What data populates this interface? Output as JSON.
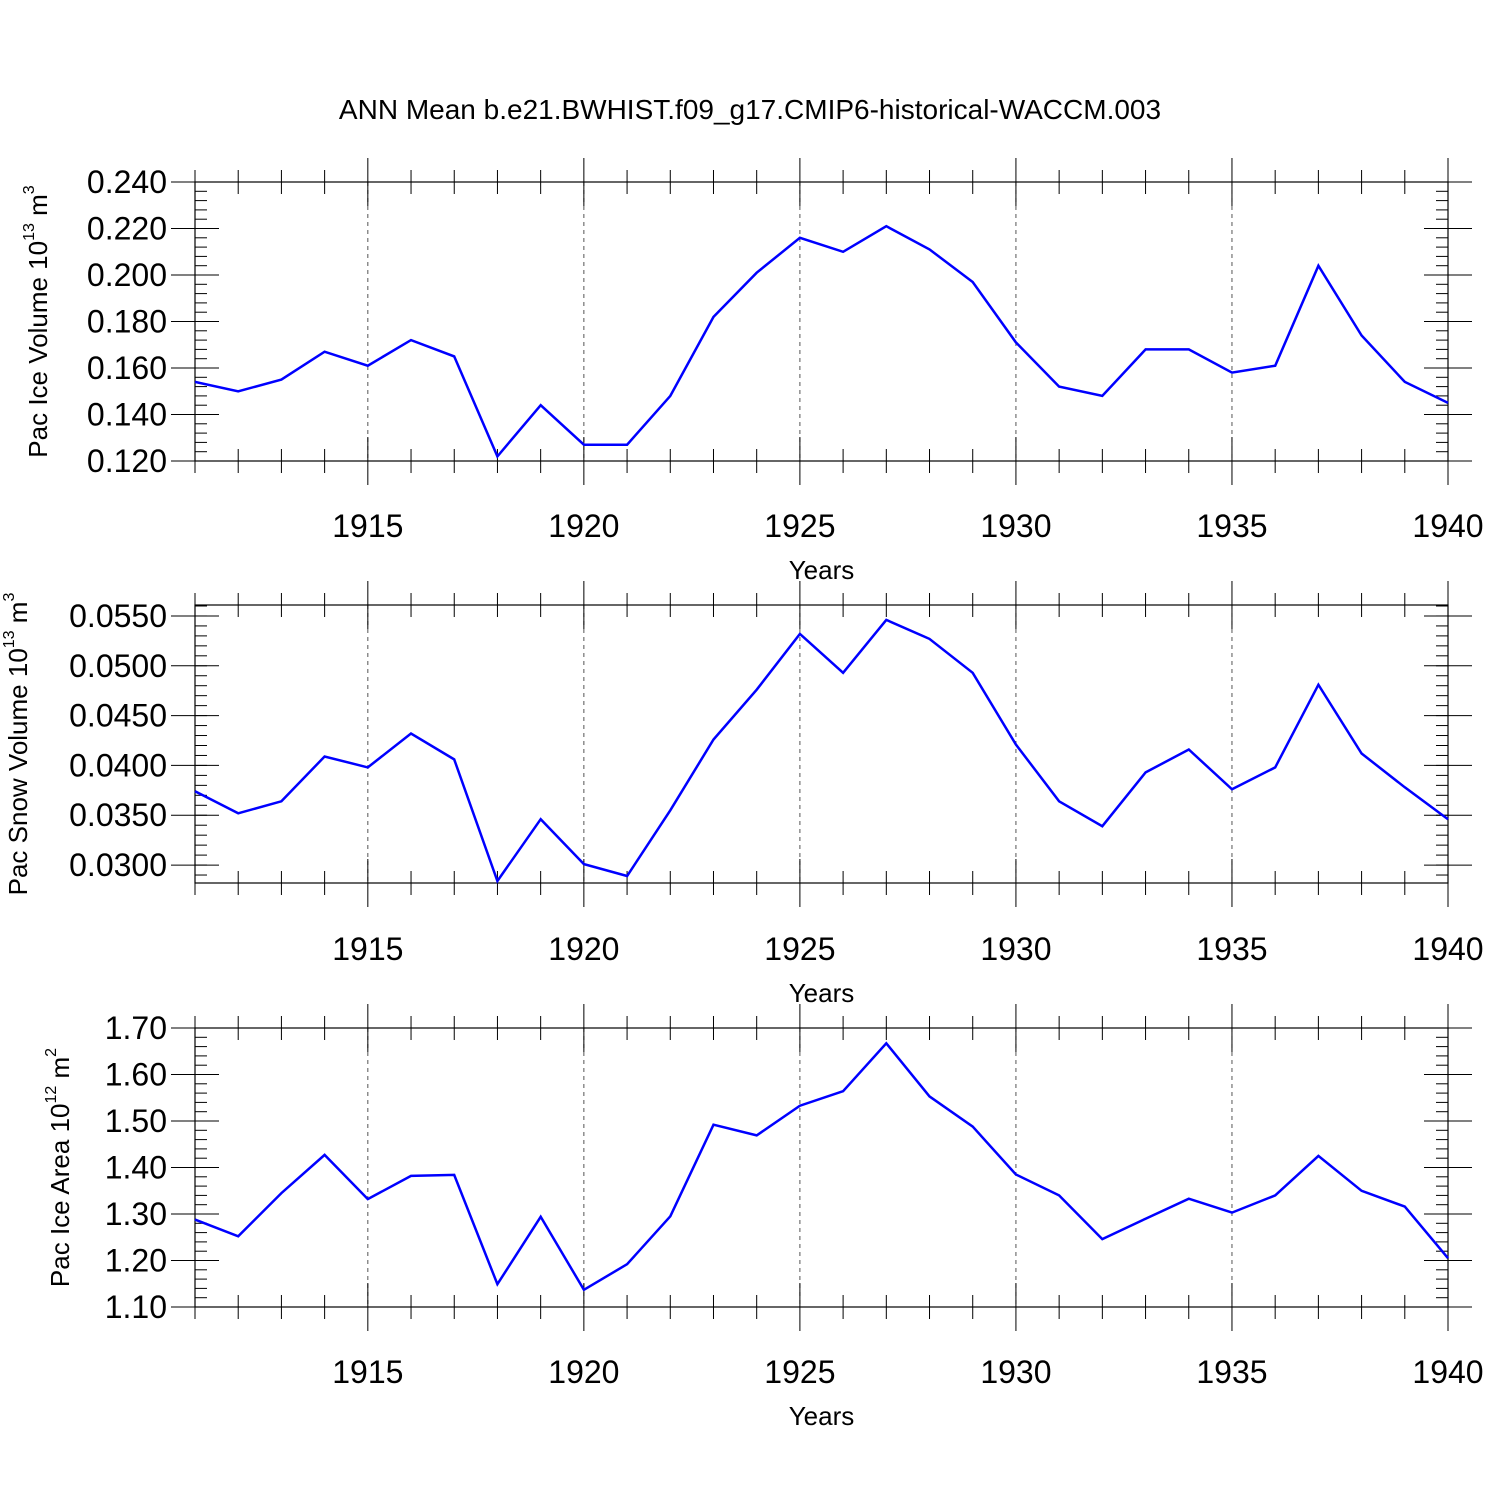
{
  "title": "ANN Mean b.e21.BWHIST.f09_g17.CMIP6-historical-WACCM.003",
  "colors": {
    "line": "#0000ff",
    "axis": "#000000",
    "grid": "#555555"
  },
  "chart_data": [
    {
      "type": "line",
      "title": "ANN Mean b.e21.BWHIST.f09_g17.CMIP6-historical-WACCM.003",
      "xlabel": "Years",
      "ylabel": {
        "base": "Pac Ice Volume 10",
        "exp": "13",
        "unit": " m",
        "unit_exp": "3"
      },
      "xlim": [
        1911,
        1940
      ],
      "ylim": [
        0.12,
        0.24
      ],
      "xticks": [
        1915,
        1920,
        1925,
        1930,
        1935,
        1940
      ],
      "yticks": [
        0.12,
        0.14,
        0.16,
        0.18,
        0.2,
        0.22,
        0.24
      ],
      "ytick_labels": [
        "0.120",
        "0.140",
        "0.160",
        "0.180",
        "0.200",
        "0.220",
        "0.240"
      ],
      "ytick_minor_step": 0.004,
      "grid": "vertical dashed at major x ticks",
      "series": [
        {
          "name": "Pac Ice Volume",
          "x": [
            1911,
            1912,
            1913,
            1914,
            1915,
            1916,
            1917,
            1918,
            1919,
            1920,
            1921,
            1922,
            1923,
            1924,
            1925,
            1926,
            1927,
            1928,
            1929,
            1930,
            1931,
            1932,
            1933,
            1934,
            1935,
            1936,
            1937,
            1938,
            1939,
            1940
          ],
          "values": [
            0.154,
            0.15,
            0.155,
            0.167,
            0.161,
            0.172,
            0.165,
            0.122,
            0.144,
            0.127,
            0.127,
            0.148,
            0.182,
            0.201,
            0.216,
            0.21,
            0.221,
            0.211,
            0.197,
            0.171,
            0.152,
            0.148,
            0.168,
            0.168,
            0.158,
            0.161,
            0.204,
            0.174,
            0.154,
            0.145
          ]
        }
      ]
    },
    {
      "type": "line",
      "xlabel": "Years",
      "ylabel": {
        "base": "Pac Snow Volume 10",
        "exp": "13",
        "unit": " m",
        "unit_exp": "3"
      },
      "xlim": [
        1911,
        1940
      ],
      "ylim": [
        0.0282,
        0.0561
      ],
      "xticks": [
        1915,
        1920,
        1925,
        1930,
        1935,
        1940
      ],
      "yticks": [
        0.03,
        0.035,
        0.04,
        0.045,
        0.05,
        0.055
      ],
      "ytick_labels": [
        "0.0300",
        "0.0350",
        "0.0400",
        "0.0450",
        "0.0500",
        "0.0550"
      ],
      "ytick_minor_step": 0.001,
      "grid": "vertical dashed at major x ticks",
      "series": [
        {
          "name": "Pac Snow Volume",
          "x": [
            1911,
            1912,
            1913,
            1914,
            1915,
            1916,
            1917,
            1918,
            1919,
            1920,
            1921,
            1922,
            1923,
            1924,
            1925,
            1926,
            1927,
            1928,
            1929,
            1930,
            1931,
            1932,
            1933,
            1934,
            1935,
            1936,
            1937,
            1938,
            1939,
            1940
          ],
          "values": [
            0.0374,
            0.0352,
            0.0364,
            0.0409,
            0.0398,
            0.0432,
            0.0406,
            0.0284,
            0.0346,
            0.0301,
            0.0289,
            0.0355,
            0.0426,
            0.0476,
            0.0532,
            0.0493,
            0.0546,
            0.0527,
            0.0493,
            0.0421,
            0.0364,
            0.0339,
            0.0393,
            0.0416,
            0.0376,
            0.0398,
            0.0481,
            0.0412,
            0.0378,
            0.0346
          ]
        }
      ]
    },
    {
      "type": "line",
      "xlabel": "Years",
      "ylabel": {
        "base": "Pac Ice Area 10",
        "exp": "12",
        "unit": " m",
        "unit_exp": "2"
      },
      "xlim": [
        1911,
        1940
      ],
      "ylim": [
        1.1,
        1.7
      ],
      "xticks": [
        1915,
        1920,
        1925,
        1930,
        1935,
        1940
      ],
      "yticks": [
        1.1,
        1.2,
        1.3,
        1.4,
        1.5,
        1.6,
        1.7
      ],
      "ytick_labels": [
        "1.10",
        "1.20",
        "1.30",
        "1.40",
        "1.50",
        "1.60",
        "1.70"
      ],
      "ytick_minor_step": 0.02,
      "grid": "vertical dashed at major x ticks",
      "series": [
        {
          "name": "Pac Ice Area",
          "x": [
            1911,
            1912,
            1913,
            1914,
            1915,
            1916,
            1917,
            1918,
            1919,
            1920,
            1921,
            1922,
            1923,
            1924,
            1925,
            1926,
            1927,
            1928,
            1929,
            1930,
            1931,
            1932,
            1933,
            1934,
            1935,
            1936,
            1937,
            1938,
            1939,
            1940
          ],
          "values": [
            1.288,
            1.252,
            1.345,
            1.427,
            1.332,
            1.382,
            1.384,
            1.149,
            1.294,
            1.137,
            1.192,
            1.295,
            1.492,
            1.469,
            1.533,
            1.564,
            1.667,
            1.553,
            1.488,
            1.385,
            1.34,
            1.246,
            1.29,
            1.333,
            1.303,
            1.34,
            1.425,
            1.35,
            1.316,
            1.205
          ]
        }
      ]
    }
  ]
}
